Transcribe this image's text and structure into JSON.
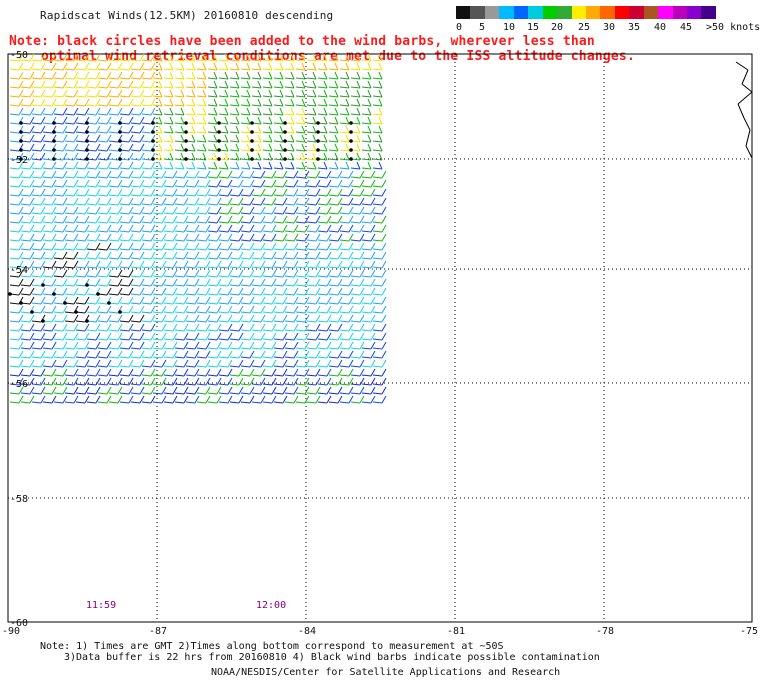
{
  "title": "Rapidscat Winds(12.5KM) 20160810 descending",
  "note": {
    "line1": "Note: black circles have been added to the wind barbs, wherever less than",
    "line2": "optimal wind retrieval conditions are met due to the ISS altitude changes."
  },
  "legend": {
    "labels": [
      "0",
      "5",
      "10",
      "15",
      "20",
      "25",
      "30",
      "35",
      "40",
      "45",
      ">50 knots"
    ],
    "colors": [
      "#111111",
      "#555555",
      "#999999",
      "#00bbff",
      "#0066ff",
      "#00ccdd",
      "#00cc00",
      "#33aa33",
      "#ffee00",
      "#ffaa00",
      "#ff6600",
      "#ff0000",
      "#cc0033",
      "#aa5522",
      "#ff00ff",
      "#bb00bb",
      "#8800cc",
      "#440088"
    ]
  },
  "map": {
    "lat_labels": [
      "-50",
      "-52",
      "-54",
      "-56",
      "-58",
      "-60"
    ],
    "lon_labels": [
      "-90",
      "-87",
      "-84",
      "-81",
      "-78",
      "-75"
    ],
    "time_labels": [
      "11:59",
      "12:00"
    ],
    "time_color": "#800080"
  },
  "footer": {
    "line1": "Note: 1) Times are GMT 2)Times along bottom correspond to measurement at ~50S",
    "line2": "3)Data buffer is 22 hrs from 20160810 4) Black wind barbs indicate possible contamination",
    "line3": "NOAA/NESDIS/Center for Satellite Applications and Research"
  }
}
